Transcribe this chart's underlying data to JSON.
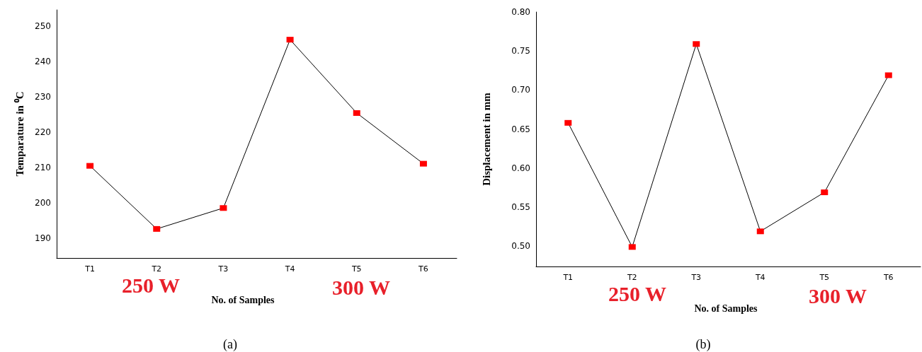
{
  "chart_data": [
    {
      "type": "line",
      "xlabel": "No. of Samples",
      "ylabel": "Temparature in ⁰C",
      "categories": [
        "T1",
        "T2",
        "T3",
        "T4",
        "T5",
        "T6"
      ],
      "series": [
        {
          "color": "#000000",
          "values": [
            210.5,
            192.7,
            198.6,
            246.1,
            225.4,
            211.1
          ]
        }
      ],
      "marker": "square",
      "line_style": "solid",
      "ylim": [
        184.5,
        254.5
      ],
      "yticks": [
        190,
        200,
        210,
        220,
        230,
        240,
        250
      ],
      "annotations": [
        "250 W",
        "300 W",
        "(a)"
      ]
    },
    {
      "type": "line",
      "xlabel": "No. of Samples",
      "ylabel": "Displacement in mm",
      "categories": [
        "T1",
        "T2",
        "T3",
        "T4",
        "T5",
        "T6"
      ],
      "series": [
        {
          "color": "#000000",
          "values": [
            0.658,
            0.499,
            0.759,
            0.519,
            0.569,
            0.719
          ]
        }
      ],
      "marker": "square",
      "line_style": "solid",
      "ylim": [
        0.474,
        0.8
      ],
      "yticks": [
        {
          "value": 0.5,
          "label": "0.50"
        },
        0.55,
        {
          "value": 0.6,
          "label": "0.60"
        },
        0.65,
        {
          "value": 0.7,
          "label": "0.70"
        },
        0.75,
        {
          "value": 0.8,
          "label": "0.80"
        }
      ],
      "annotations": [
        "250 W",
        "300 W",
        "(b)"
      ]
    }
  ]
}
